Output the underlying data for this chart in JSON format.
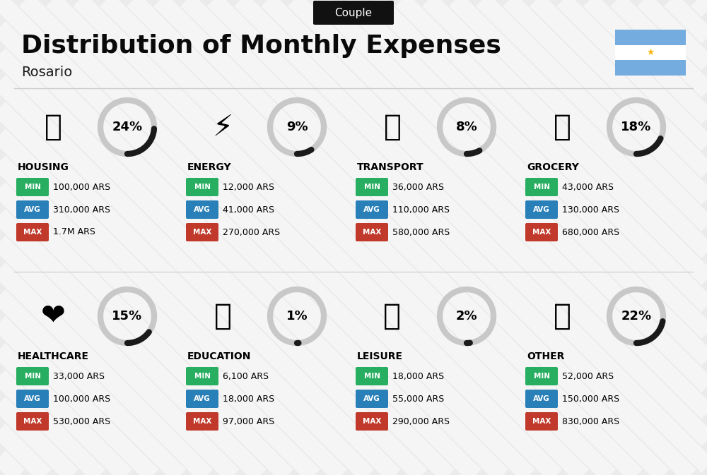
{
  "title": "Distribution of Monthly Expenses",
  "subtitle": "Rosario",
  "tag": "Couple",
  "bg_color": "#ebebeb",
  "categories": [
    {
      "name": "HOUSING",
      "pct": 24,
      "min": "100,000 ARS",
      "avg": "310,000 ARS",
      "max": "1.7M ARS",
      "row": 0,
      "col": 0
    },
    {
      "name": "ENERGY",
      "pct": 9,
      "min": "12,000 ARS",
      "avg": "41,000 ARS",
      "max": "270,000 ARS",
      "row": 0,
      "col": 1
    },
    {
      "name": "TRANSPORT",
      "pct": 8,
      "min": "36,000 ARS",
      "avg": "110,000 ARS",
      "max": "580,000 ARS",
      "row": 0,
      "col": 2
    },
    {
      "name": "GROCERY",
      "pct": 18,
      "min": "43,000 ARS",
      "avg": "130,000 ARS",
      "max": "680,000 ARS",
      "row": 0,
      "col": 3
    },
    {
      "name": "HEALTHCARE",
      "pct": 15,
      "min": "33,000 ARS",
      "avg": "100,000 ARS",
      "max": "530,000 ARS",
      "row": 1,
      "col": 0
    },
    {
      "name": "EDUCATION",
      "pct": 1,
      "min": "6,100 ARS",
      "avg": "18,000 ARS",
      "max": "97,000 ARS",
      "row": 1,
      "col": 1
    },
    {
      "name": "LEISURE",
      "pct": 2,
      "min": "18,000 ARS",
      "avg": "55,000 ARS",
      "max": "290,000 ARS",
      "row": 1,
      "col": 2
    },
    {
      "name": "OTHER",
      "pct": 22,
      "min": "52,000 ARS",
      "avg": "150,000 ARS",
      "max": "830,000 ARS",
      "row": 1,
      "col": 3
    }
  ],
  "min_color": "#27ae60",
  "avg_color": "#2980b9",
  "max_color": "#c0392b",
  "arc_color": "#1a1a1a",
  "arc_bg_color": "#c8c8c8",
  "stripe_color": "#ffffff",
  "stripe_alpha": 0.55,
  "flag_blue": "#74ACDF",
  "flag_sun": "#F6B40E",
  "tag_bg": "#111111",
  "tag_color": "#ffffff",
  "title_color": "#0a0a0a",
  "subtitle_color": "#1a1a1a"
}
